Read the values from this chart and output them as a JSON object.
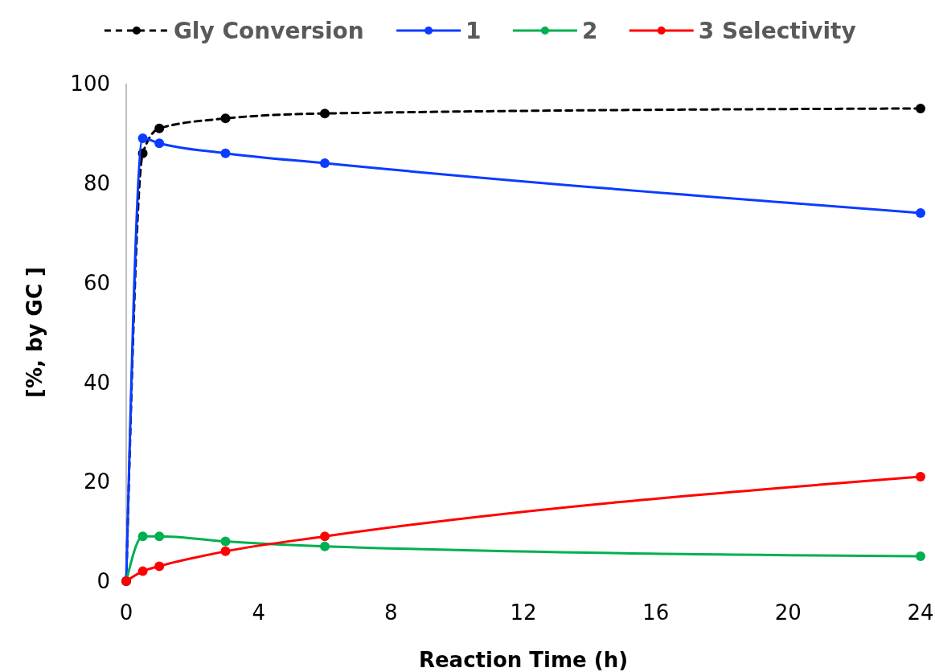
{
  "chart_data": {
    "type": "line",
    "xlabel": "Reaction Time (h)",
    "ylabel": "[%, by GC ]",
    "x": [
      0,
      0.5,
      1,
      3,
      6,
      24
    ],
    "series": [
      {
        "name": "Gly Conversion",
        "color": "#000000",
        "line_style": "dashed",
        "values": [
          0,
          86,
          91,
          93,
          94,
          95
        ]
      },
      {
        "name": "1",
        "color": "#0a3cff",
        "values": [
          0,
          89,
          88,
          86,
          84,
          74
        ]
      },
      {
        "name": "2",
        "color": "#00b050",
        "values": [
          0,
          9,
          9,
          8,
          7,
          5
        ]
      },
      {
        "name": "3 Selectivity",
        "color": "#ff0000",
        "values": [
          0,
          2,
          3,
          6,
          9,
          21
        ]
      }
    ],
    "xlim": [
      0,
      24
    ],
    "xticks": [
      0,
      4,
      8,
      12,
      16,
      20,
      24
    ],
    "ylim": [
      0,
      100
    ],
    "yticks": [
      0,
      20,
      40,
      60,
      80,
      100
    ],
    "grid": false,
    "legend": "top",
    "marker": "circle",
    "line_style": "solid"
  }
}
